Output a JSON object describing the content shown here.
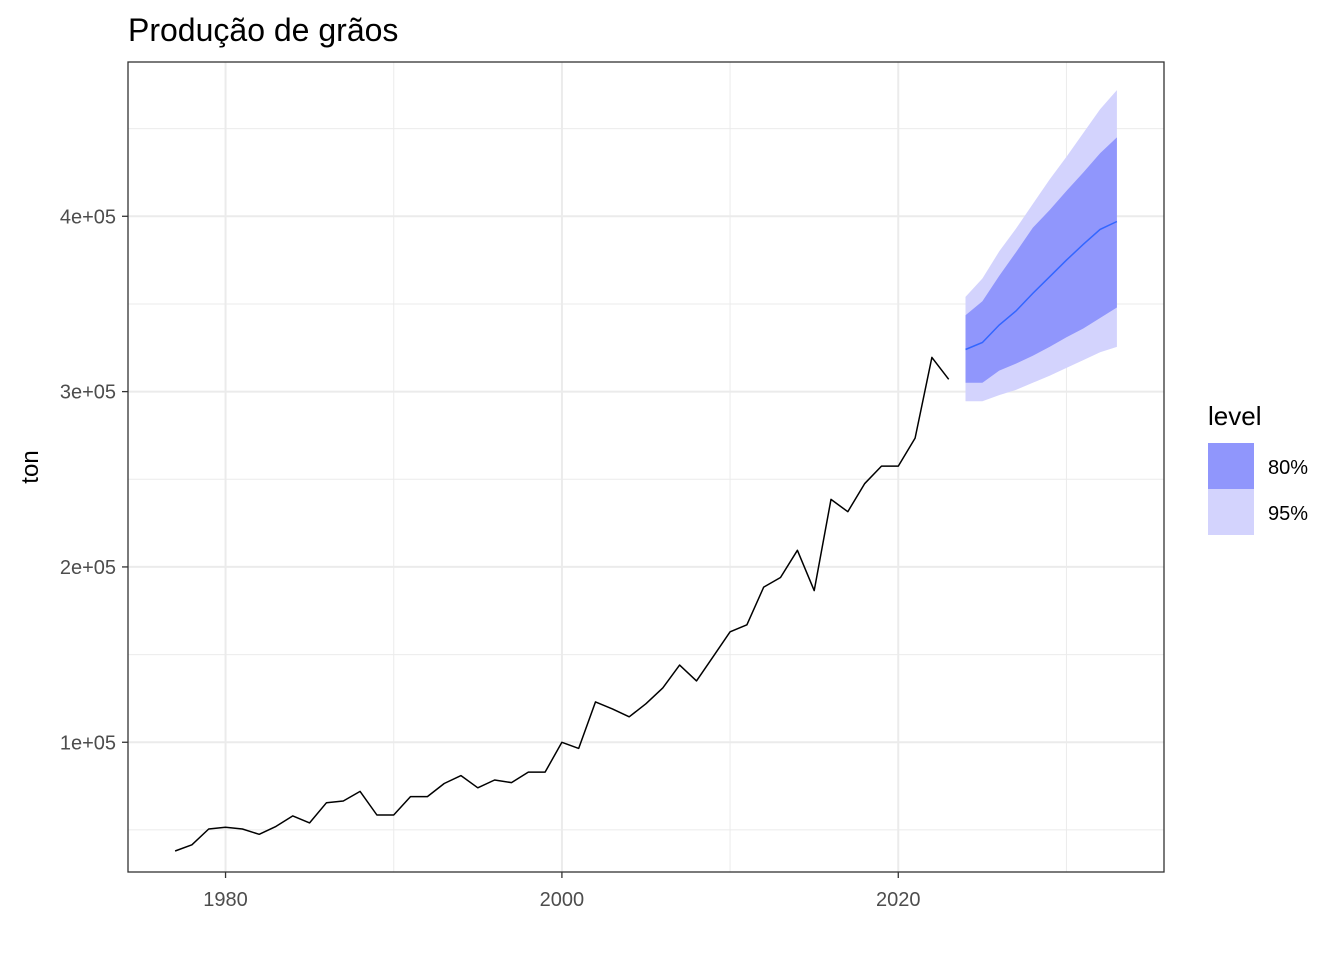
{
  "chart_data": {
    "type": "line",
    "title": "Produção de grãos",
    "xlabel": "",
    "ylabel": "ton",
    "xlim": [
      1974.2,
      2035.8
    ],
    "ylim": [
      26000,
      488000
    ],
    "x_ticks": [
      1980,
      2000,
      2020
    ],
    "x_minor_ticks": [
      1990,
      2010,
      2030
    ],
    "y_ticks": [
      100000,
      200000,
      300000,
      400000
    ],
    "y_tick_labels": [
      "1e+05",
      "2e+05",
      "3e+05",
      "4e+05"
    ],
    "y_minor_ticks": [
      50000,
      150000,
      250000,
      350000,
      450000
    ],
    "grid": true,
    "legend_position": "right",
    "series": [
      {
        "x": [
          1977,
          1978,
          1979,
          1980,
          1981,
          1982,
          1983,
          1984,
          1985,
          1986,
          1987,
          1988,
          1989,
          1990,
          1991,
          1992,
          1993,
          1994,
          1995,
          1996,
          1997,
          1998,
          1999,
          2000,
          2001,
          2002,
          2003,
          2004,
          2005,
          2006,
          2007,
          2008,
          2009,
          2010,
          2011,
          2012,
          2013,
          2014,
          2015,
          2016,
          2017,
          2018,
          2019,
          2020,
          2021,
          2022,
          2023
        ],
        "values": [
          38000,
          41500,
          50500,
          51500,
          50500,
          47500,
          52000,
          58000,
          54000,
          65500,
          66500,
          72000,
          58500,
          58500,
          69000,
          69000,
          76500,
          81000,
          74000,
          78500,
          77000,
          83000,
          83000,
          100000,
          96500,
          123000,
          119000,
          114500,
          122000,
          131000,
          144000,
          135000,
          149000,
          163000,
          167000,
          188500,
          194000,
          209500,
          186500,
          238500,
          231500,
          247500,
          257500,
          257500,
          273500,
          319500,
          307000
        ],
        "color": "#000000"
      }
    ],
    "forecast": {
      "x": [
        2024,
        2025,
        2026,
        2027,
        2028,
        2029,
        2030,
        2031,
        2032,
        2033
      ],
      "mean": [
        324000,
        328000,
        338000,
        346000,
        356000,
        365500,
        375000,
        384000,
        392500,
        397000
      ],
      "lo80": [
        305000,
        305000,
        312000,
        316000,
        320500,
        325500,
        331000,
        336000,
        342000,
        348000
      ],
      "hi80": [
        343500,
        351500,
        366000,
        379500,
        393500,
        403500,
        414500,
        425000,
        436000,
        445000
      ],
      "lo95": [
        294500,
        294500,
        298000,
        301000,
        305000,
        309000,
        313500,
        318000,
        322500,
        325500
      ],
      "hi95": [
        354000,
        364500,
        380000,
        393000,
        407000,
        421000,
        434000,
        447500,
        461000,
        472000
      ],
      "mean_color": "#3366ff",
      "band_80_color": "#9096fc",
      "band_95_color": "#d3d3fd"
    },
    "legend": {
      "title": "level",
      "entries": [
        {
          "label": "80%",
          "color": "#9096fc"
        },
        {
          "label": "95%",
          "color": "#d3d3fd"
        }
      ]
    }
  }
}
